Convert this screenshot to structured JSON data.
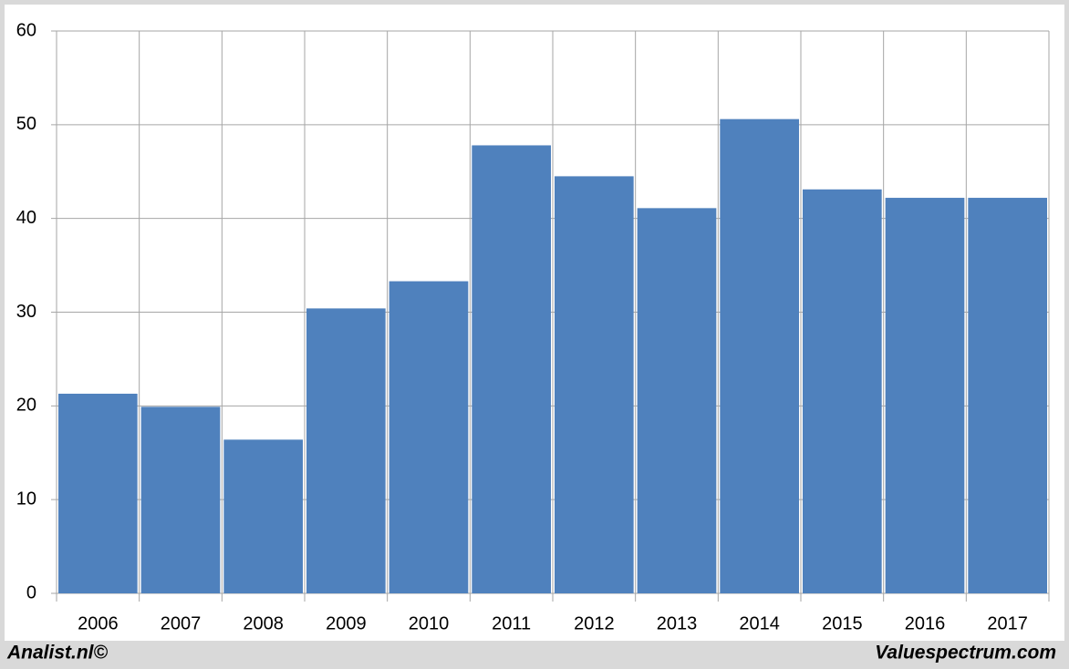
{
  "chart_data": {
    "type": "bar",
    "categories": [
      "2006",
      "2007",
      "2008",
      "2009",
      "2010",
      "2011",
      "2012",
      "2013",
      "2014",
      "2015",
      "2016",
      "2017"
    ],
    "values": [
      21.3,
      19.9,
      16.4,
      30.4,
      33.3,
      47.8,
      44.5,
      41.1,
      50.6,
      43.1,
      42.2,
      42.2
    ],
    "color": "#4f81bd",
    "ylim": [
      0,
      60
    ],
    "yticks": [
      0,
      10,
      20,
      30,
      40,
      50,
      60
    ],
    "grid": true,
    "annotations": [
      "Analist.nl©",
      "Valuespectrum.com"
    ]
  }
}
